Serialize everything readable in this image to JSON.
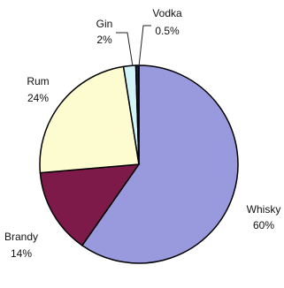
{
  "chart_data": {
    "type": "pie",
    "title": "",
    "slices": [
      {
        "label": "Whisky",
        "value": 60,
        "display": "60%",
        "color": "#9999dd"
      },
      {
        "label": "Brandy",
        "value": 14,
        "display": "14%",
        "color": "#7d1a4a"
      },
      {
        "label": "Rum",
        "value": 24,
        "display": "24%",
        "color": "#fdfbd0"
      },
      {
        "label": "Gin",
        "value": 2,
        "display": "2%",
        "color": "#d2f3f8"
      },
      {
        "label": "Vodka",
        "value": 0.5,
        "display": "0.5%",
        "color": "#1a2040"
      }
    ],
    "start": "top",
    "direction": "clockwise",
    "legend": "none"
  }
}
